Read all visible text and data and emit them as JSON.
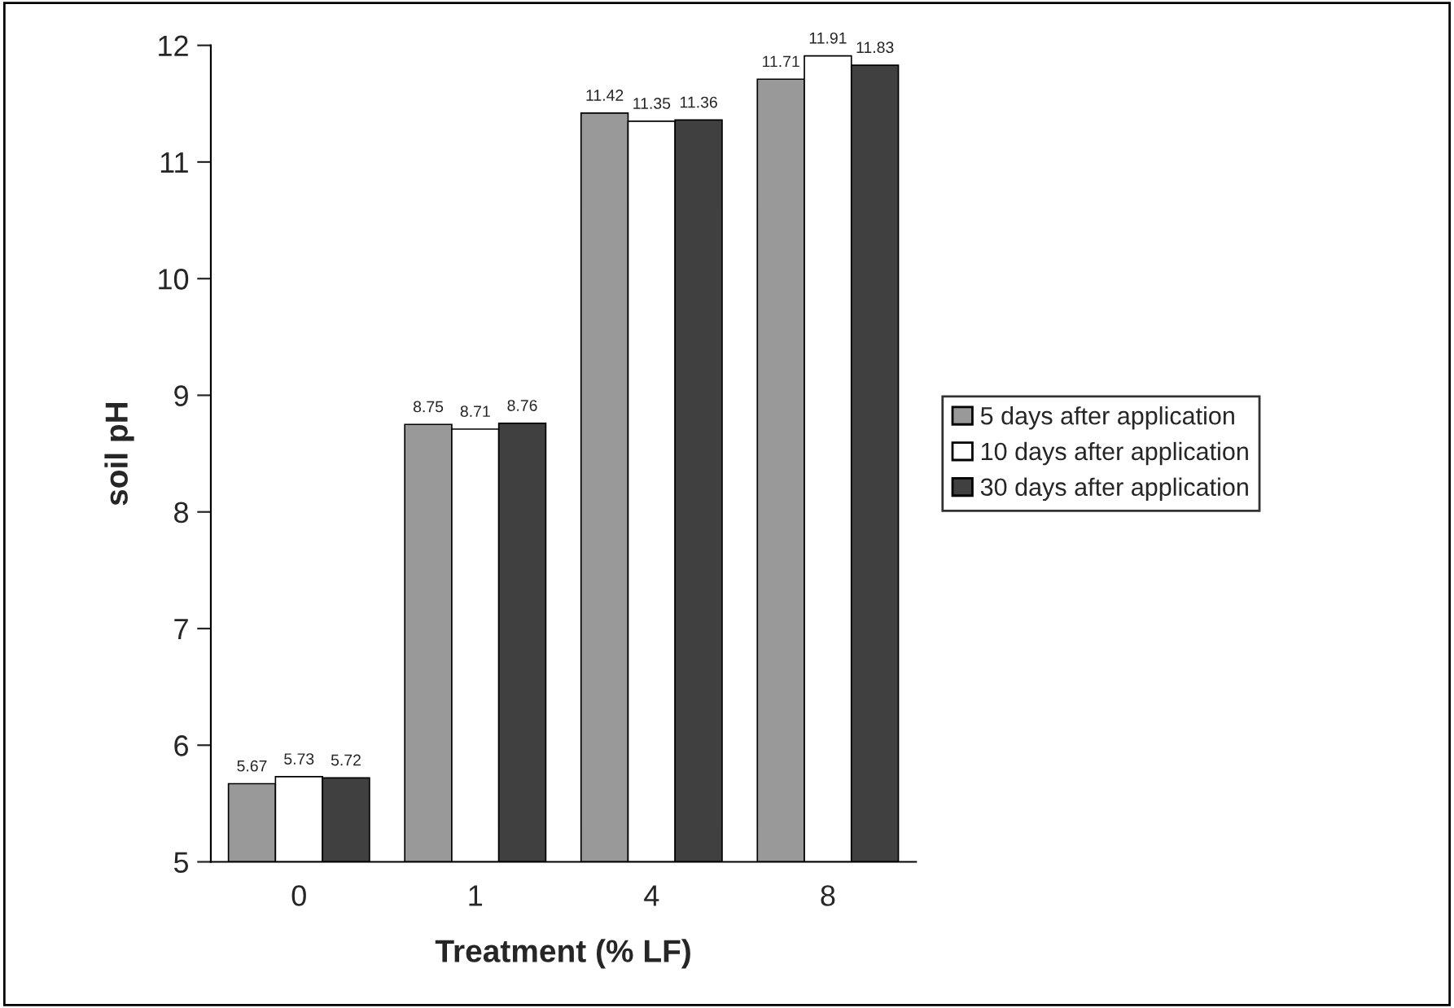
{
  "chart_data": {
    "type": "bar",
    "xlabel": "Treatment (% LF)",
    "ylabel": "soil pH",
    "categories": [
      "0",
      "1",
      "4",
      "8"
    ],
    "series": [
      {
        "name": "5 days after application",
        "color": "#999999",
        "values": [
          5.67,
          8.75,
          11.42,
          11.71
        ]
      },
      {
        "name": "10 days after application",
        "color": "#ffffff",
        "values": [
          5.73,
          8.71,
          11.35,
          11.91
        ]
      },
      {
        "name": "30 days after application",
        "color": "#404040",
        "values": [
          5.72,
          8.76,
          11.36,
          11.83
        ]
      }
    ],
    "ylim": [
      5,
      12
    ],
    "yticks": [
      5,
      6,
      7,
      8,
      9,
      10,
      11,
      12
    ],
    "data_labels": true,
    "grid": false,
    "legend": "right"
  }
}
